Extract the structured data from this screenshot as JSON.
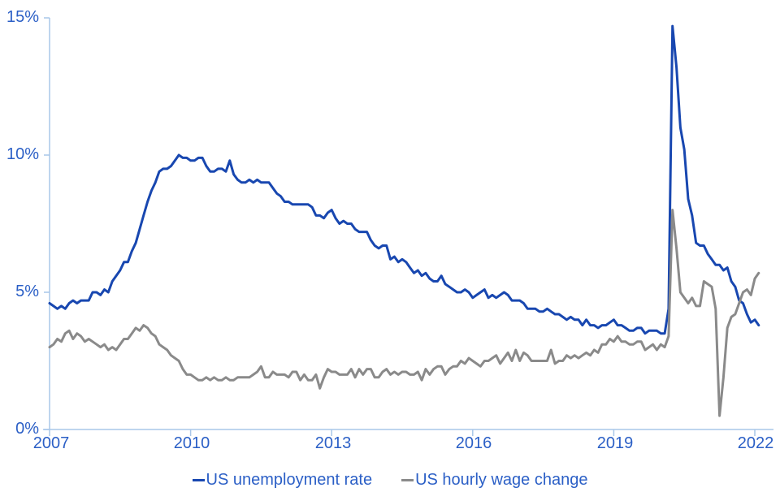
{
  "chart_data": {
    "type": "line",
    "title": "",
    "xlabel": "",
    "ylabel": "",
    "y_unit": "%",
    "ylim": [
      0,
      15
    ],
    "xlim": [
      2007,
      2022.4
    ],
    "grid": false,
    "legend_position": "bottom-center",
    "x_range": {
      "start": "2007-01",
      "end": "2022-02",
      "frequency": "monthly"
    },
    "x_ticks": [
      2007,
      2010,
      2013,
      2016,
      2019,
      2022
    ],
    "x_tick_labels": [
      "2007",
      "2010",
      "2013",
      "2016",
      "2019",
      "2022"
    ],
    "y_ticks": [
      0,
      5,
      10,
      15
    ],
    "y_tick_labels": [
      "0%",
      "5%",
      "10%",
      "15%"
    ],
    "axis_color": "#a9c7e9",
    "label_color": "#2b5fc6",
    "series": [
      {
        "name": "US unemployment rate",
        "color": "#1847b0",
        "start": "2007-01",
        "frequency": "monthly",
        "values": [
          4.6,
          4.5,
          4.4,
          4.5,
          4.4,
          4.6,
          4.7,
          4.6,
          4.7,
          4.7,
          4.7,
          5.0,
          5.0,
          4.9,
          5.1,
          5.0,
          5.4,
          5.6,
          5.8,
          6.1,
          6.1,
          6.5,
          6.8,
          7.3,
          7.8,
          8.3,
          8.7,
          9.0,
          9.4,
          9.5,
          9.5,
          9.6,
          9.8,
          10.0,
          9.9,
          9.9,
          9.8,
          9.8,
          9.9,
          9.9,
          9.6,
          9.4,
          9.4,
          9.5,
          9.5,
          9.4,
          9.8,
          9.3,
          9.1,
          9.0,
          9.0,
          9.1,
          9.0,
          9.1,
          9.0,
          9.0,
          9.0,
          8.8,
          8.6,
          8.5,
          8.3,
          8.3,
          8.2,
          8.2,
          8.2,
          8.2,
          8.2,
          8.1,
          7.8,
          7.8,
          7.7,
          7.9,
          8.0,
          7.7,
          7.5,
          7.6,
          7.5,
          7.5,
          7.3,
          7.2,
          7.2,
          7.2,
          6.9,
          6.7,
          6.6,
          6.7,
          6.7,
          6.2,
          6.3,
          6.1,
          6.2,
          6.1,
          5.9,
          5.7,
          5.8,
          5.6,
          5.7,
          5.5,
          5.4,
          5.4,
          5.6,
          5.3,
          5.2,
          5.1,
          5.0,
          5.0,
          5.1,
          5.0,
          4.8,
          4.9,
          5.0,
          5.1,
          4.8,
          4.9,
          4.8,
          4.9,
          5.0,
          4.9,
          4.7,
          4.7,
          4.7,
          4.6,
          4.4,
          4.4,
          4.4,
          4.3,
          4.3,
          4.4,
          4.3,
          4.2,
          4.2,
          4.1,
          4.0,
          4.1,
          4.0,
          4.0,
          3.8,
          4.0,
          3.8,
          3.8,
          3.7,
          3.8,
          3.8,
          3.9,
          4.0,
          3.8,
          3.8,
          3.7,
          3.6,
          3.6,
          3.7,
          3.7,
          3.5,
          3.6,
          3.6,
          3.6,
          3.5,
          3.5,
          4.4,
          14.7,
          13.2,
          11.0,
          10.2,
          8.4,
          7.8,
          6.8,
          6.7,
          6.7,
          6.4,
          6.2,
          6.0,
          6.0,
          5.8,
          5.9,
          5.4,
          5.2,
          4.7,
          4.6,
          4.2,
          3.9,
          4.0,
          3.8
        ]
      },
      {
        "name": "US hourly wage change",
        "color": "#8a8a8a",
        "start": "2007-01",
        "frequency": "monthly",
        "values": [
          3.0,
          3.1,
          3.3,
          3.2,
          3.5,
          3.6,
          3.3,
          3.5,
          3.4,
          3.2,
          3.3,
          3.2,
          3.1,
          3.0,
          3.1,
          2.9,
          3.0,
          2.9,
          3.1,
          3.3,
          3.3,
          3.5,
          3.7,
          3.6,
          3.8,
          3.7,
          3.5,
          3.4,
          3.1,
          3.0,
          2.9,
          2.7,
          2.6,
          2.5,
          2.2,
          2.0,
          2.0,
          1.9,
          1.8,
          1.8,
          1.9,
          1.8,
          1.9,
          1.8,
          1.8,
          1.9,
          1.8,
          1.8,
          1.9,
          1.9,
          1.9,
          1.9,
          2.0,
          2.1,
          2.3,
          1.9,
          1.9,
          2.1,
          2.0,
          2.0,
          2.0,
          1.9,
          2.1,
          2.1,
          1.8,
          2.0,
          1.8,
          1.8,
          2.0,
          1.5,
          1.9,
          2.2,
          2.1,
          2.1,
          2.0,
          2.0,
          2.0,
          2.2,
          1.9,
          2.2,
          2.0,
          2.2,
          2.2,
          1.9,
          1.9,
          2.1,
          2.2,
          2.0,
          2.1,
          2.0,
          2.1,
          2.1,
          2.0,
          2.0,
          2.1,
          1.8,
          2.2,
          2.0,
          2.2,
          2.3,
          2.3,
          2.0,
          2.2,
          2.3,
          2.3,
          2.5,
          2.4,
          2.6,
          2.5,
          2.4,
          2.3,
          2.5,
          2.5,
          2.6,
          2.7,
          2.4,
          2.6,
          2.8,
          2.5,
          2.9,
          2.5,
          2.8,
          2.7,
          2.5,
          2.5,
          2.5,
          2.5,
          2.5,
          2.9,
          2.4,
          2.5,
          2.5,
          2.7,
          2.6,
          2.7,
          2.6,
          2.7,
          2.8,
          2.7,
          2.9,
          2.8,
          3.1,
          3.1,
          3.3,
          3.2,
          3.4,
          3.2,
          3.2,
          3.1,
          3.1,
          3.2,
          3.2,
          2.9,
          3.0,
          3.1,
          2.9,
          3.1,
          3.0,
          3.4,
          8.0,
          6.6,
          5.0,
          4.8,
          4.6,
          4.8,
          4.5,
          4.5,
          5.4,
          5.3,
          5.2,
          4.4,
          0.5,
          1.9,
          3.7,
          4.1,
          4.2,
          4.6,
          5.0,
          5.1,
          4.9,
          5.5,
          5.7
        ]
      }
    ]
  },
  "legend": {
    "items": [
      {
        "label": "US unemployment rate",
        "color": "#1847b0"
      },
      {
        "label": "US hourly wage change",
        "color": "#8a8a8a"
      }
    ]
  }
}
